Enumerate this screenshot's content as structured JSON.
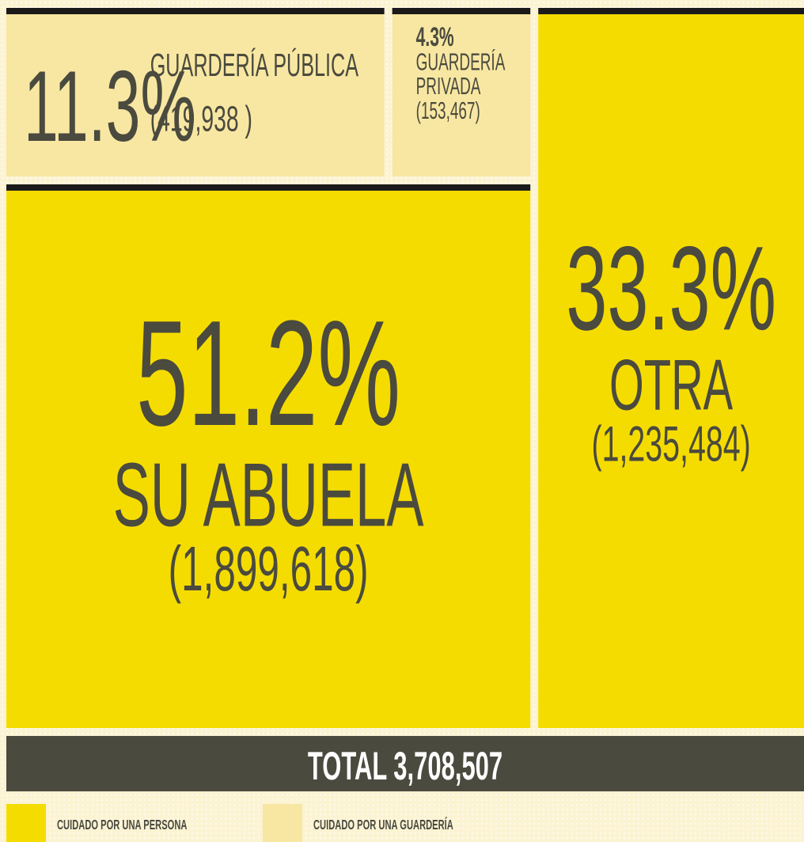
{
  "chart_data": {
    "type": "treemap",
    "categories": [
      "GUARDERÍA PÚBLICA",
      "GUARDERÍA PRIVADA",
      "SU ABUELA",
      "OTRA"
    ],
    "values": [
      11.3,
      4.3,
      51.2,
      33.3
    ],
    "value_labels": [
      "11.3%",
      "4.3%",
      "51.2%",
      "33.3%"
    ],
    "counts": [
      419938,
      153467,
      1899618,
      1235484
    ],
    "count_labels": [
      "(419,938 )",
      "(153,467)",
      "(1,899,618)",
      "(1,235,484)"
    ],
    "colors": [
      "#f8e7a2",
      "#f8e7a2",
      "#f5dc00",
      "#f5dc00"
    ],
    "total": {
      "value": 3708507,
      "label": "TOTAL 3,708,507"
    },
    "legend": [
      {
        "name": "CUIDADO POR UNA PERSONA",
        "color": "#f5dc00"
      },
      {
        "name": "CUIDADO POR UNA GUARDERÍA",
        "color": "#f8e7a2"
      }
    ]
  }
}
